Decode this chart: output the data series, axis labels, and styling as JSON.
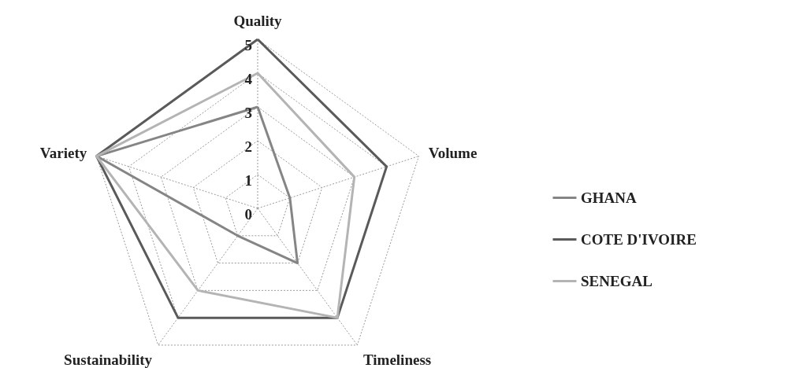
{
  "chart_data": {
    "type": "radar",
    "categories": [
      "Quality",
      "Volume",
      "Timeliness",
      "Sustainability",
      "Variety"
    ],
    "series": [
      {
        "name": "GHANA",
        "color": "#858585",
        "values": [
          3,
          1,
          2,
          1,
          5
        ]
      },
      {
        "name": "COTE D'IVOIRE",
        "color": "#5a5a5a",
        "values": [
          5,
          4,
          4,
          4,
          5
        ]
      },
      {
        "name": "SENEGAL",
        "color": "#b4b4b4",
        "values": [
          4,
          3,
          4,
          3,
          5
        ]
      }
    ],
    "ylim": [
      0,
      5
    ],
    "yticks": [
      0,
      1,
      2,
      3,
      4,
      5
    ],
    "grid": true,
    "legend": "right",
    "line_style": "solid"
  }
}
